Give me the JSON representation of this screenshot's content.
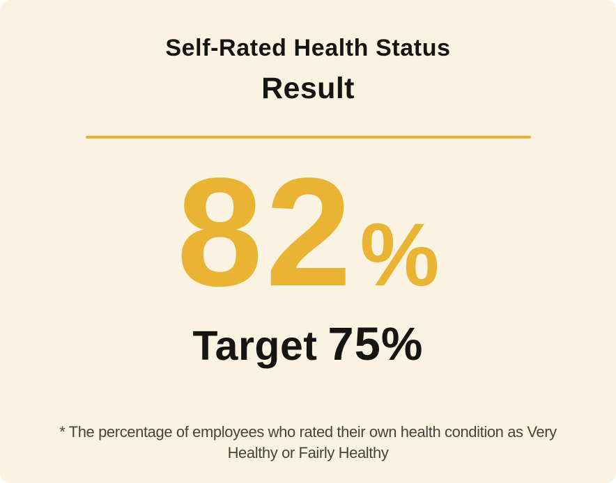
{
  "card": {
    "title": "Self-Rated Health Status",
    "subtitle": "Result",
    "result": {
      "value": "82",
      "unit": "%"
    },
    "target": {
      "label": "Target",
      "display": "75%",
      "value": 75,
      "unit": "%"
    },
    "footnote_lines": [
      "* The percentage of employees who rated their own health condition as Very",
      "Healthy or Fairly Healthy"
    ],
    "colors": {
      "background": "#FBF3E1",
      "accent_gold": "#E9B434",
      "text_primary": "#161513",
      "text_footnote": "#46433E"
    }
  },
  "chart_data": {
    "type": "table",
    "title": "Self-Rated Health Status",
    "subtitle": "Result",
    "metrics": [
      {
        "name": "Result",
        "value": 82,
        "unit": "%"
      },
      {
        "name": "Target",
        "value": 75,
        "unit": "%"
      }
    ],
    "note": "* The percentage of employees who rated their own health condition as Very Healthy or Fairly Healthy"
  }
}
